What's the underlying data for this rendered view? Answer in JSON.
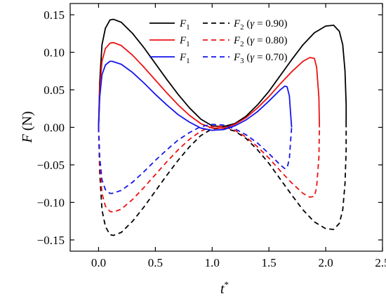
{
  "chart_data": {
    "type": "line",
    "xlabel_main": "t",
    "xlabel_sup": "*",
    "ylabel_main": "F",
    "ylabel_unit": " (N)",
    "xlim": [
      -0.25,
      2.5
    ],
    "ylim": [
      -0.165,
      0.165
    ],
    "x_ticks": [
      0.0,
      0.5,
      1.0,
      1.5,
      2.0,
      2.5
    ],
    "x_tick_labels": [
      "0.0",
      "0.5",
      "1.0",
      "1.5",
      "2.0",
      "2.5"
    ],
    "y_ticks": [
      -0.15,
      -0.1,
      -0.05,
      0.0,
      0.05,
      0.1,
      0.15
    ],
    "y_tick_labels": [
      "−0.15",
      "−0.10",
      "−0.05",
      "0.00",
      "0.05",
      "0.10",
      "0.15"
    ],
    "grid": false,
    "legend_position": "top-right",
    "legend_rows": [
      {
        "color": "#000000",
        "solid_label": {
          "main": "F",
          "sub": "1"
        },
        "dashed_label": {
          "main": "F",
          "sub": "2",
          "gamma": "γ",
          "rest": " = 0.90)"
        }
      },
      {
        "color": "#ee1111",
        "solid_label": {
          "main": "F",
          "sub": "1"
        },
        "dashed_label": {
          "main": "F",
          "sub": "2",
          "gamma": "γ",
          "rest": " = 0.80)"
        }
      },
      {
        "color": "#1515ee",
        "solid_label": {
          "main": "F",
          "sub": "1"
        },
        "dashed_label": {
          "main": "F",
          "sub": "3",
          "gamma": "γ",
          "rest": " = 0.70)"
        }
      }
    ],
    "series": [
      {
        "color": "#000000",
        "dash": "solid",
        "x": [
          0.0,
          0.01,
          0.03,
          0.06,
          0.1,
          0.13,
          0.2,
          0.3,
          0.4,
          0.5,
          0.6,
          0.7,
          0.8,
          0.9,
          1.0,
          1.1,
          1.2,
          1.3,
          1.4,
          1.5,
          1.6,
          1.7,
          1.8,
          1.9,
          2.0,
          2.07,
          2.12,
          2.15,
          2.17,
          2.18,
          2.18
        ],
        "y": [
          0.0,
          0.06,
          0.11,
          0.132,
          0.143,
          0.144,
          0.14,
          0.125,
          0.106,
          0.085,
          0.064,
          0.044,
          0.026,
          0.011,
          0.002,
          0.001,
          0.005,
          0.015,
          0.03,
          0.048,
          0.069,
          0.09,
          0.11,
          0.126,
          0.135,
          0.136,
          0.128,
          0.11,
          0.075,
          0.03,
          0.0
        ]
      },
      {
        "color": "#000000",
        "dash": "dashed",
        "x": [
          0.0,
          0.01,
          0.03,
          0.06,
          0.1,
          0.13,
          0.2,
          0.3,
          0.4,
          0.5,
          0.6,
          0.7,
          0.8,
          0.9,
          1.0,
          1.1,
          1.2,
          1.3,
          1.4,
          1.5,
          1.6,
          1.7,
          1.8,
          1.9,
          2.0,
          2.07,
          2.12,
          2.15,
          2.17,
          2.18,
          2.18
        ],
        "y": [
          0.0,
          -0.06,
          -0.11,
          -0.132,
          -0.143,
          -0.144,
          -0.14,
          -0.125,
          -0.106,
          -0.085,
          -0.064,
          -0.044,
          -0.026,
          -0.011,
          -0.002,
          -0.001,
          -0.005,
          -0.015,
          -0.03,
          -0.048,
          -0.069,
          -0.09,
          -0.11,
          -0.126,
          -0.135,
          -0.136,
          -0.128,
          -0.11,
          -0.075,
          -0.03,
          0.0
        ]
      },
      {
        "color": "#ee1111",
        "dash": "solid",
        "x": [
          0.0,
          0.01,
          0.03,
          0.06,
          0.1,
          0.13,
          0.2,
          0.3,
          0.4,
          0.5,
          0.6,
          0.7,
          0.8,
          0.9,
          1.0,
          1.1,
          1.2,
          1.3,
          1.4,
          1.5,
          1.6,
          1.7,
          1.8,
          1.86,
          1.9,
          1.92,
          1.94,
          1.945
        ],
        "y": [
          0.0,
          0.05,
          0.088,
          0.105,
          0.112,
          0.113,
          0.109,
          0.096,
          0.08,
          0.063,
          0.046,
          0.03,
          0.016,
          0.005,
          -0.001,
          -0.001,
          0.004,
          0.013,
          0.026,
          0.041,
          0.058,
          0.074,
          0.088,
          0.093,
          0.092,
          0.08,
          0.04,
          0.0
        ]
      },
      {
        "color": "#ee1111",
        "dash": "dashed",
        "x": [
          0.0,
          0.01,
          0.03,
          0.06,
          0.1,
          0.13,
          0.2,
          0.3,
          0.4,
          0.5,
          0.6,
          0.7,
          0.8,
          0.9,
          1.0,
          1.1,
          1.2,
          1.3,
          1.4,
          1.5,
          1.6,
          1.7,
          1.8,
          1.86,
          1.9,
          1.92,
          1.94,
          1.945
        ],
        "y": [
          0.0,
          -0.05,
          -0.088,
          -0.105,
          -0.112,
          -0.113,
          -0.109,
          -0.096,
          -0.08,
          -0.063,
          -0.046,
          -0.03,
          -0.016,
          -0.005,
          0.001,
          0.001,
          -0.004,
          -0.013,
          -0.026,
          -0.041,
          -0.058,
          -0.074,
          -0.088,
          -0.093,
          -0.092,
          -0.08,
          -0.04,
          0.0
        ]
      },
      {
        "color": "#1515ee",
        "dash": "solid",
        "x": [
          0.0,
          0.01,
          0.03,
          0.06,
          0.1,
          0.12,
          0.2,
          0.3,
          0.4,
          0.5,
          0.6,
          0.7,
          0.8,
          0.9,
          1.0,
          1.1,
          1.2,
          1.3,
          1.4,
          1.5,
          1.6,
          1.64,
          1.66,
          1.68,
          1.69,
          1.7
        ],
        "y": [
          0.0,
          0.04,
          0.07,
          0.083,
          0.088,
          0.088,
          0.084,
          0.073,
          0.059,
          0.044,
          0.03,
          0.017,
          0.007,
          -0.001,
          -0.004,
          -0.003,
          0.002,
          0.01,
          0.021,
          0.035,
          0.05,
          0.055,
          0.054,
          0.042,
          0.02,
          0.0
        ]
      },
      {
        "color": "#1515ee",
        "dash": "dashed",
        "x": [
          0.0,
          0.01,
          0.03,
          0.06,
          0.1,
          0.12,
          0.2,
          0.3,
          0.4,
          0.5,
          0.6,
          0.7,
          0.8,
          0.9,
          1.0,
          1.1,
          1.2,
          1.3,
          1.4,
          1.5,
          1.6,
          1.64,
          1.66,
          1.68,
          1.69,
          1.7
        ],
        "y": [
          0.0,
          -0.04,
          -0.07,
          -0.083,
          -0.088,
          -0.088,
          -0.084,
          -0.073,
          -0.059,
          -0.044,
          -0.03,
          -0.017,
          -0.007,
          0.001,
          0.004,
          0.003,
          -0.002,
          -0.01,
          -0.021,
          -0.035,
          -0.05,
          -0.055,
          -0.054,
          -0.042,
          -0.02,
          0.0
        ]
      }
    ]
  }
}
